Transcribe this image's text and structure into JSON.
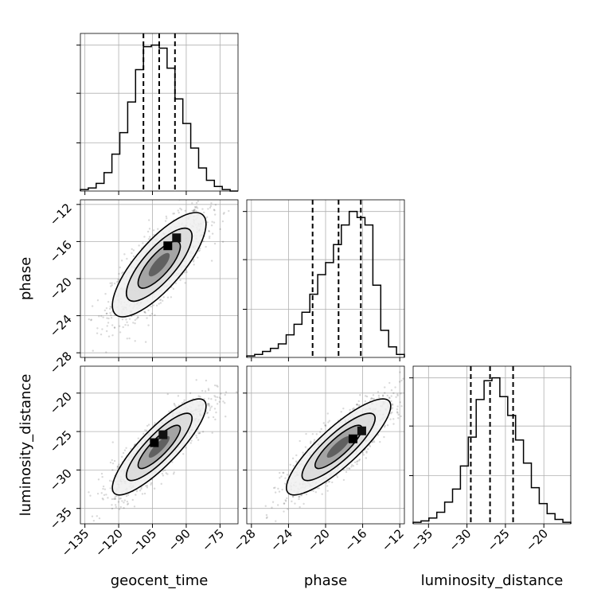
{
  "chart_data": {
    "type": "corner",
    "parameters": [
      "geocent_time",
      "phase",
      "luminosity_distance"
    ],
    "grid": true,
    "axes": {
      "geocent_time": {
        "range": [
          -137,
          -67
        ],
        "ticks": [
          -135,
          -120,
          -105,
          -90,
          -75
        ],
        "tick_labels": [
          "−135",
          "−120",
          "−105",
          "−90",
          "−75"
        ]
      },
      "phase": {
        "range": [
          -28.5,
          -11.5
        ],
        "ticks": [
          -28,
          -24,
          -20,
          -16,
          -12
        ],
        "tick_labels": [
          "−28",
          "−24",
          "−20",
          "−16",
          "−12"
        ]
      },
      "luminosity_distance": {
        "range": [
          -37,
          -16.5
        ],
        "ticks": [
          -35,
          -30,
          -25,
          -20
        ],
        "tick_labels": [
          "−35",
          "−30",
          "−25",
          "−20"
        ]
      }
    },
    "histograms": [
      {
        "parameter": "geocent_time",
        "bin_edges": [
          -137,
          -133.5,
          -130,
          -126.5,
          -123,
          -119.5,
          -116,
          -112.5,
          -109,
          -105.5,
          -102,
          -98.5,
          -95,
          -91.5,
          -88,
          -84.5,
          -81,
          -77.5,
          -74,
          -70.5,
          -67
        ],
        "counts": [
          1,
          2,
          5,
          12,
          24,
          38,
          58,
          79,
          94,
          95,
          93,
          80,
          60,
          44,
          28,
          15,
          7,
          3,
          1,
          0
        ],
        "quantiles": [
          -109,
          -102,
          -95
        ]
      },
      {
        "parameter": "phase",
        "bin_edges": [
          -28.5,
          -27.65,
          -26.8,
          -25.95,
          -25.1,
          -24.25,
          -23.4,
          -22.55,
          -21.7,
          -20.85,
          -20,
          -19.15,
          -18.3,
          -17.45,
          -16.6,
          -15.75,
          -14.9,
          -14.05,
          -13.2,
          -12.35,
          -11.5
        ],
        "counts": [
          1,
          2,
          4,
          6,
          9,
          15,
          22,
          30,
          42,
          55,
          63,
          75,
          88,
          97,
          93,
          88,
          48,
          18,
          7,
          2
        ],
        "quantiles": [
          -21.4,
          -18.6,
          -16.2
        ]
      },
      {
        "parameter": "luminosity_distance",
        "bin_edges": [
          -37,
          -35.975,
          -34.95,
          -33.925,
          -32.9,
          -31.875,
          -30.85,
          -29.825,
          -28.8,
          -27.775,
          -26.75,
          -25.725,
          -24.7,
          -23.675,
          -22.65,
          -21.625,
          -20.6,
          -19.575,
          -18.55,
          -17.525,
          -16.5
        ],
        "counts": [
          1,
          2,
          4,
          8,
          15,
          24,
          40,
          60,
          86,
          99,
          101,
          88,
          75,
          58,
          42,
          25,
          14,
          7,
          3,
          1
        ],
        "quantiles": [
          -29.5,
          -27,
          -24
        ]
      }
    ],
    "scatter_2d": [
      {
        "x_param": "geocent_time",
        "y_param": "phase",
        "mean": [
          -102,
          -18.5
        ],
        "corr": 0.78,
        "peak": [
          -98,
          -16.5
        ]
      },
      {
        "x_param": "geocent_time",
        "y_param": "luminosity_distance",
        "mean": [
          -102,
          -27
        ],
        "corr": 0.85,
        "peak": [
          -104,
          -26.5
        ]
      },
      {
        "x_param": "phase",
        "y_param": "luminosity_distance",
        "mean": [
          -18.6,
          -27
        ],
        "corr": 0.85,
        "peak": [
          -17,
          -26
        ]
      }
    ]
  }
}
